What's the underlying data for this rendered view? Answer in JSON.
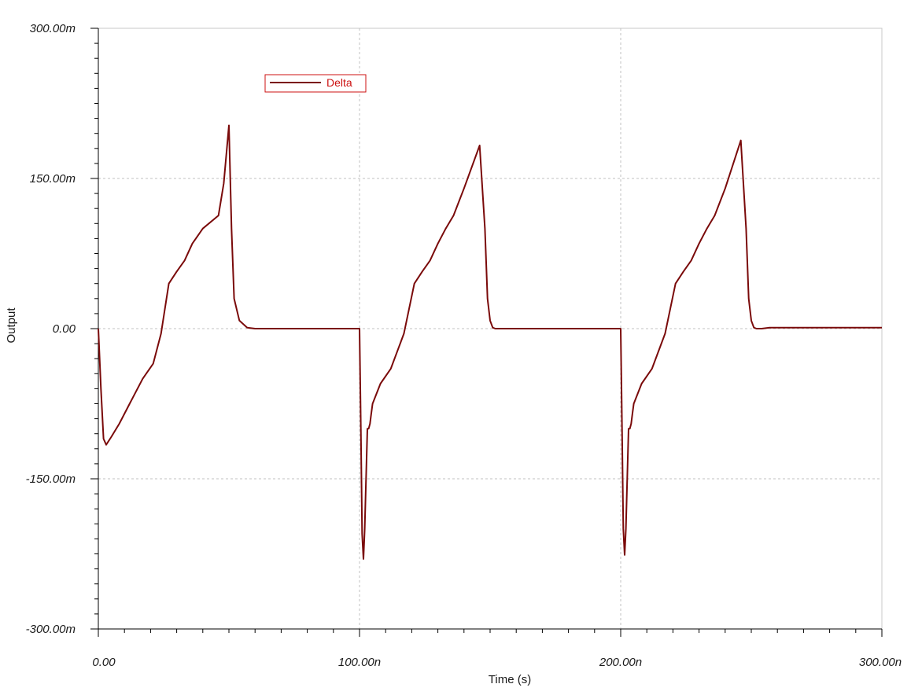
{
  "chart_data": {
    "type": "line",
    "xlabel": "Time (s)",
    "ylabel": "Output",
    "xlim": [
      0,
      3e-07
    ],
    "ylim": [
      -0.3,
      0.3
    ],
    "x_ticks": [
      {
        "value": 0,
        "label": "0.00"
      },
      {
        "value": 1e-07,
        "label": "100.00n"
      },
      {
        "value": 2e-07,
        "label": "200.00n"
      },
      {
        "value": 3e-07,
        "label": "300.00n"
      }
    ],
    "y_ticks": [
      {
        "value": 0.3,
        "label": "300.00m"
      },
      {
        "value": 0.15,
        "label": "150.00m"
      },
      {
        "value": 0,
        "label": "0.00"
      },
      {
        "value": -0.15,
        "label": "-150.00m"
      },
      {
        "value": -0.3,
        "label": "-300.00m"
      }
    ],
    "grid": true,
    "legend_position": "top-left",
    "series": [
      {
        "name": "Delta",
        "color": "#7a0a0a",
        "legend_color": "#cc1111",
        "x": [
          0,
          1e-09,
          2e-09,
          3e-09,
          5e-09,
          8e-09,
          1.2e-08,
          1.7e-08,
          2.1e-08,
          2.4e-08,
          2.7e-08,
          3e-08,
          3.3e-08,
          3.6e-08,
          4e-08,
          4.6e-08,
          4.8e-08,
          5e-08,
          5.1e-08,
          5.2e-08,
          5.4e-08,
          5.7e-08,
          6e-08,
          1e-07,
          1.005e-07,
          1.01e-07,
          1.015e-07,
          1.02e-07,
          1.025e-07,
          1.03e-07,
          1.035e-07,
          1.04e-07,
          1.045e-07,
          1.05e-07,
          1.08e-07,
          1.12e-07,
          1.17e-07,
          1.21e-07,
          1.24e-07,
          1.27e-07,
          1.3e-07,
          1.33e-07,
          1.36e-07,
          1.4e-07,
          1.46e-07,
          1.48e-07,
          1.49e-07,
          1.5e-07,
          1.51e-07,
          1.52e-07,
          1.54e-07,
          1.57e-07,
          1.6e-07,
          2e-07,
          2.005e-07,
          2.01e-07,
          2.015e-07,
          2.02e-07,
          2.025e-07,
          2.03e-07,
          2.035e-07,
          2.04e-07,
          2.045e-07,
          2.05e-07,
          2.08e-07,
          2.12e-07,
          2.17e-07,
          2.21e-07,
          2.24e-07,
          2.27e-07,
          2.3e-07,
          2.33e-07,
          2.36e-07,
          2.4e-07,
          2.46e-07,
          2.48e-07,
          2.49e-07,
          2.5e-07,
          2.51e-07,
          2.52e-07,
          2.54e-07,
          2.57e-07,
          2.6e-07,
          3e-07
        ],
        "values": [
          0,
          -0.06,
          -0.11,
          -0.116,
          -0.108,
          -0.095,
          -0.075,
          -0.05,
          -0.035,
          -0.005,
          0.045,
          0.057,
          0.068,
          0.085,
          0.1,
          0.113,
          0.145,
          0.203,
          0.1,
          0.03,
          0.008,
          0.001,
          0,
          0,
          -0.1,
          -0.205,
          -0.23,
          -0.2,
          -0.15,
          -0.1,
          -0.1,
          -0.095,
          -0.085,
          -0.075,
          -0.055,
          -0.04,
          -0.005,
          0.045,
          0.057,
          0.068,
          0.085,
          0.1,
          0.113,
          0.14,
          0.183,
          0.1,
          0.03,
          0.008,
          0.001,
          0,
          0,
          0,
          0,
          0,
          -0.1,
          -0.2,
          -0.226,
          -0.2,
          -0.15,
          -0.1,
          -0.1,
          -0.095,
          -0.085,
          -0.075,
          -0.055,
          -0.04,
          -0.005,
          0.045,
          0.057,
          0.068,
          0.085,
          0.1,
          0.113,
          0.14,
          0.188,
          0.1,
          0.03,
          0.008,
          0.001,
          0,
          0,
          0.001,
          0.001,
          0.001
        ]
      }
    ]
  }
}
